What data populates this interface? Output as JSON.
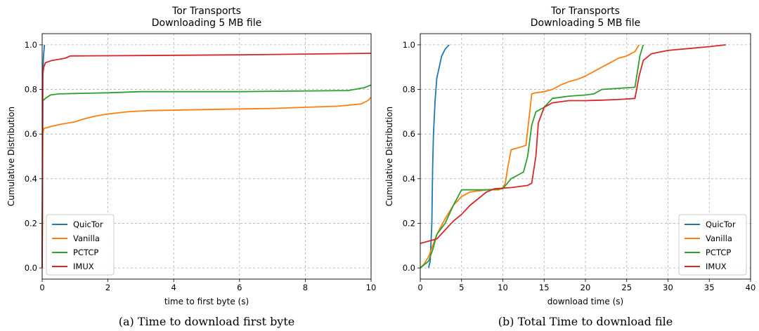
{
  "chart_data": [
    {
      "type": "line",
      "title": "Tor Transports\nDownloading 5 MB file",
      "xlabel": "time to first byte (s)",
      "ylabel": "Cumulative Distribution",
      "caption": "(a)  Time to download first byte",
      "xlim": [
        0,
        10
      ],
      "ylim": [
        -0.05,
        1.05
      ],
      "xticks": [
        "0",
        "2",
        "4",
        "6",
        "8",
        "10"
      ],
      "yticks": [
        "0.0",
        "0.2",
        "0.4",
        "0.6",
        "0.8",
        "1.0"
      ],
      "grid": true,
      "legend_position": "bottom-left",
      "series": [
        {
          "name": "QuicTor",
          "color": "#1f77b4",
          "points": [
            [
              0,
              0
            ],
            [
              0.01,
              0.5
            ],
            [
              0.02,
              0.85
            ],
            [
              0.04,
              0.95
            ],
            [
              0.07,
              1.0
            ]
          ]
        },
        {
          "name": "Vanilla",
          "color": "#ff7f0e",
          "points": [
            [
              0,
              0
            ],
            [
              0.01,
              0.3
            ],
            [
              0.02,
              0.6
            ],
            [
              0.05,
              0.625
            ],
            [
              0.3,
              0.635
            ],
            [
              0.6,
              0.645
            ],
            [
              1.0,
              0.655
            ],
            [
              1.2,
              0.665
            ],
            [
              1.6,
              0.68
            ],
            [
              2,
              0.69
            ],
            [
              2.6,
              0.7
            ],
            [
              3.2,
              0.705
            ],
            [
              5,
              0.71
            ],
            [
              7,
              0.715
            ],
            [
              9,
              0.725
            ],
            [
              9.7,
              0.735
            ],
            [
              9.9,
              0.75
            ],
            [
              10,
              0.765
            ]
          ]
        },
        {
          "name": "PCTCP",
          "color": "#2ca02c",
          "points": [
            [
              0,
              0
            ],
            [
              0.01,
              0.4
            ],
            [
              0.02,
              0.75
            ],
            [
              0.1,
              0.76
            ],
            [
              0.25,
              0.775
            ],
            [
              0.5,
              0.78
            ],
            [
              1,
              0.782
            ],
            [
              2,
              0.785
            ],
            [
              3,
              0.79
            ],
            [
              6,
              0.79
            ],
            [
              9.3,
              0.795
            ],
            [
              9.5,
              0.8
            ],
            [
              9.8,
              0.808
            ],
            [
              10,
              0.82
            ]
          ]
        },
        {
          "name": "IMUX",
          "color": "#d62728",
          "points": [
            [
              0,
              0
            ],
            [
              0.01,
              0.5
            ],
            [
              0.02,
              0.87
            ],
            [
              0.05,
              0.9
            ],
            [
              0.1,
              0.92
            ],
            [
              0.3,
              0.93
            ],
            [
              0.7,
              0.94
            ],
            [
              0.85,
              0.95
            ],
            [
              3,
              0.952
            ],
            [
              6,
              0.955
            ],
            [
              10,
              0.962
            ]
          ]
        }
      ]
    },
    {
      "type": "line",
      "title": "Tor Transports\nDownloading 5 MB file",
      "xlabel": "download time (s)",
      "ylabel": "Cumulative Distribution",
      "caption": "(b)  Total Time to download file",
      "xlim": [
        0,
        40
      ],
      "ylim": [
        -0.05,
        1.05
      ],
      "xticks": [
        "0",
        "5",
        "10",
        "15",
        "20",
        "25",
        "30",
        "35",
        "40"
      ],
      "yticks": [
        "0.0",
        "0.2",
        "0.4",
        "0.6",
        "0.8",
        "1.0"
      ],
      "grid": true,
      "legend_position": "bottom-right",
      "series": [
        {
          "name": "QuicTor",
          "color": "#1f77b4",
          "points": [
            [
              1.0,
              0.0
            ],
            [
              1.2,
              0.03
            ],
            [
              1.4,
              0.2
            ],
            [
              1.5,
              0.45
            ],
            [
              1.6,
              0.6
            ],
            [
              1.8,
              0.75
            ],
            [
              2.0,
              0.85
            ],
            [
              2.3,
              0.9
            ],
            [
              2.6,
              0.95
            ],
            [
              3.0,
              0.98
            ],
            [
              3.5,
              1.0
            ]
          ]
        },
        {
          "name": "Vanilla",
          "color": "#ff7f0e",
          "points": [
            [
              0,
              0.0
            ],
            [
              0.5,
              0.02
            ],
            [
              1,
              0.05
            ],
            [
              2,
              0.15
            ],
            [
              3,
              0.22
            ],
            [
              4,
              0.28
            ],
            [
              5,
              0.32
            ],
            [
              6,
              0.34
            ],
            [
              8,
              0.35
            ],
            [
              9.5,
              0.35
            ],
            [
              10,
              0.36
            ],
            [
              10.3,
              0.38
            ],
            [
              10.6,
              0.45
            ],
            [
              11,
              0.53
            ],
            [
              12,
              0.54
            ],
            [
              12.8,
              0.55
            ],
            [
              13.2,
              0.68
            ],
            [
              13.5,
              0.78
            ],
            [
              14,
              0.785
            ],
            [
              15,
              0.79
            ],
            [
              16,
              0.8
            ],
            [
              17,
              0.82
            ],
            [
              18,
              0.835
            ],
            [
              19,
              0.845
            ],
            [
              20,
              0.86
            ],
            [
              21,
              0.88
            ],
            [
              22,
              0.9
            ],
            [
              23,
              0.92
            ],
            [
              24,
              0.94
            ],
            [
              25,
              0.95
            ],
            [
              26,
              0.97
            ],
            [
              26.5,
              1.0
            ]
          ]
        },
        {
          "name": "PCTCP",
          "color": "#2ca02c",
          "points": [
            [
              0,
              0.0
            ],
            [
              1,
              0.03
            ],
            [
              1.5,
              0.08
            ],
            [
              2,
              0.15
            ],
            [
              3,
              0.2
            ],
            [
              4,
              0.28
            ],
            [
              5,
              0.35
            ],
            [
              6,
              0.35
            ],
            [
              8,
              0.35
            ],
            [
              10,
              0.355
            ],
            [
              11,
              0.4
            ],
            [
              12,
              0.42
            ],
            [
              12.5,
              0.43
            ],
            [
              13,
              0.5
            ],
            [
              13.5,
              0.64
            ],
            [
              14,
              0.7
            ],
            [
              15,
              0.72
            ],
            [
              16,
              0.76
            ],
            [
              18,
              0.77
            ],
            [
              20,
              0.775
            ],
            [
              21,
              0.78
            ],
            [
              22,
              0.8
            ],
            [
              24,
              0.805
            ],
            [
              26,
              0.81
            ],
            [
              26.3,
              0.88
            ],
            [
              26.6,
              0.95
            ],
            [
              27,
              1.0
            ]
          ]
        },
        {
          "name": "IMUX",
          "color": "#d62728",
          "points": [
            [
              0,
              0.11
            ],
            [
              1,
              0.12
            ],
            [
              2,
              0.13
            ],
            [
              3,
              0.17
            ],
            [
              4,
              0.21
            ],
            [
              5,
              0.24
            ],
            [
              6,
              0.28
            ],
            [
              7,
              0.31
            ],
            [
              8,
              0.34
            ],
            [
              9,
              0.355
            ],
            [
              11,
              0.36
            ],
            [
              12,
              0.365
            ],
            [
              13,
              0.37
            ],
            [
              13.5,
              0.38
            ],
            [
              14,
              0.5
            ],
            [
              14.3,
              0.65
            ],
            [
              15,
              0.72
            ],
            [
              16,
              0.74
            ],
            [
              18,
              0.75
            ],
            [
              20,
              0.75
            ],
            [
              22,
              0.752
            ],
            [
              24,
              0.755
            ],
            [
              26,
              0.76
            ],
            [
              26.5,
              0.86
            ],
            [
              27,
              0.93
            ],
            [
              28,
              0.96
            ],
            [
              30,
              0.975
            ],
            [
              33,
              0.985
            ],
            [
              35,
              0.992
            ],
            [
              37,
              1.0
            ]
          ]
        }
      ]
    }
  ]
}
